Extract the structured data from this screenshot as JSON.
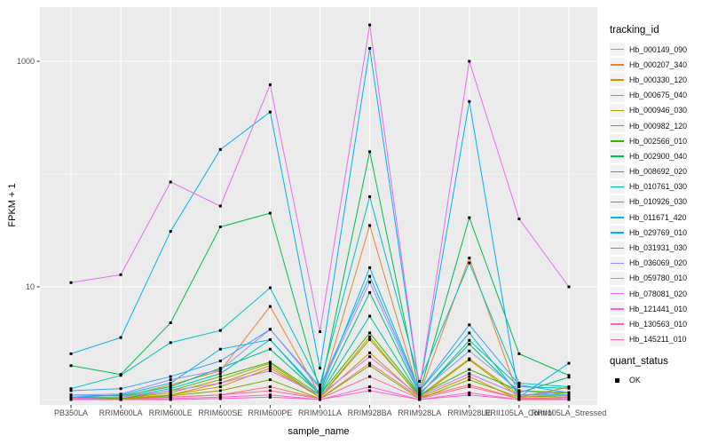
{
  "figure": {
    "y_axis_title": "FPKM + 1",
    "x_axis_title": "sample_name",
    "legend_color_title": "tracking_id",
    "legend_shape_title": "quant_status",
    "legend_shape_item": "OK",
    "colors": {
      "panel_background": "#EBEBEB",
      "grid_line": "#FFFFFF",
      "tick_mark": "#333333",
      "tick_label": "#4D4D4D",
      "point_marker": "#000000",
      "legend_key_background": "#F2F2F2"
    }
  },
  "chart_data": {
    "type": "line",
    "title": "",
    "xlabel": "sample_name",
    "ylabel": "FPKM + 1",
    "y_scale": "log10",
    "ylim": [
      1,
      3162
    ],
    "grid": true,
    "legend_position": "right",
    "point_marker": "black-square",
    "y_ticks_major": {
      "values": [
        10,
        1000
      ],
      "labels": [
        "10",
        "1000"
      ]
    },
    "y_ticks_minor_values": [
      1,
      100
    ],
    "x_categories": [
      "PB350LA",
      "RRIM600LA",
      "RRIM600LE",
      "RRIM600SE",
      "RRIM600PE",
      "RRIM901LA",
      "RRIM928BA",
      "RRIM928LA",
      "RRIM928LE",
      "RRII105LA_Control",
      "RRII105LA_Stressed"
    ],
    "series": [
      {
        "name": "Hb_000149_090",
        "color": "#F8766D",
        "values": [
          1.02,
          1.02,
          1.05,
          1.1,
          1.3,
          1.02,
          2.1,
          1.05,
          1.35,
          1.02,
          1.05
        ]
      },
      {
        "name": "Hb_000207_340",
        "color": "#EA8331",
        "values": [
          1.0,
          1.05,
          1.35,
          1.8,
          6.7,
          1.1,
          35.0,
          1.1,
          18.0,
          1.05,
          1.1
        ]
      },
      {
        "name": "Hb_000330_120",
        "color": "#D89000",
        "values": [
          1.0,
          1.0,
          1.1,
          1.3,
          1.9,
          1.05,
          2.6,
          1.05,
          1.6,
          1.0,
          1.05
        ]
      },
      {
        "name": "Hb_000675_040",
        "color": "#C09B00",
        "values": [
          1.0,
          1.02,
          1.1,
          1.4,
          2.0,
          1.05,
          3.6,
          1.05,
          2.25,
          1.05,
          1.29
        ]
      },
      {
        "name": "Hb_000946_030",
        "color": "#A3A500",
        "values": [
          1.05,
          1.02,
          1.15,
          1.5,
          2.1,
          1.05,
          3.4,
          1.08,
          2.3,
          1.1,
          1.15
        ]
      },
      {
        "name": "Hb_000982_120",
        "color": "#7CAE00",
        "values": [
          1.0,
          1.0,
          1.08,
          1.2,
          1.5,
          1.02,
          2.0,
          1.02,
          1.5,
          1.05,
          1.08
        ]
      },
      {
        "name": "Hb_002566_010",
        "color": "#39B600",
        "values": [
          1.02,
          1.02,
          1.2,
          1.6,
          2.15,
          1.1,
          3.9,
          1.1,
          1.85,
          1.2,
          1.15
        ]
      },
      {
        "name": "Hb_002900_040",
        "color": "#00BB4E",
        "values": [
          2.0,
          1.67,
          4.8,
          34.0,
          45.0,
          1.2,
          158,
          1.15,
          41.0,
          2.55,
          1.64
        ]
      },
      {
        "name": "Hb_008692_020",
        "color": "#00BF7D",
        "values": [
          1.1,
          1.08,
          1.3,
          1.9,
          2.8,
          1.12,
          8.9,
          1.12,
          3.1,
          1.15,
          1.58
        ]
      },
      {
        "name": "Hb_010761_030",
        "color": "#00C1A3",
        "values": [
          1.05,
          1.05,
          1.25,
          1.7,
          3.4,
          1.1,
          5.5,
          1.1,
          3.35,
          1.3,
          1.26
        ]
      },
      {
        "name": "Hb_010926_030",
        "color": "#00BFC4",
        "values": [
          1.25,
          1.64,
          3.2,
          4.1,
          9.8,
          1.35,
          63.0,
          1.45,
          16.3,
          1.4,
          1.3
        ]
      },
      {
        "name": "Hb_011671_420",
        "color": "#00BAE0",
        "values": [
          1.05,
          1.1,
          1.4,
          2.8,
          3.4,
          1.15,
          14.8,
          1.2,
          3.9,
          1.1,
          1.1
        ]
      },
      {
        "name": "Hb_029769_010",
        "color": "#00B0F6",
        "values": [
          2.55,
          3.55,
          31.0,
          165,
          355,
          1.9,
          1300,
          1.25,
          440,
          1.05,
          2.1
        ]
      },
      {
        "name": "Hb_031931_030",
        "color": "#35A2FF",
        "values": [
          1.2,
          1.25,
          1.6,
          2.2,
          4.2,
          1.3,
          12.4,
          1.2,
          4.6,
          1.35,
          1.15
        ]
      },
      {
        "name": "Hb_036069_020",
        "color": "#9590FF",
        "values": [
          1.1,
          1.12,
          1.5,
          1.83,
          4.2,
          1.25,
          11.0,
          1.15,
          2.7,
          1.2,
          1.1
        ]
      },
      {
        "name": "Hb_059780_010",
        "color": "#C77CFF",
        "values": [
          1.02,
          1.05,
          1.2,
          1.4,
          1.8,
          1.1,
          2.4,
          1.08,
          1.7,
          1.1,
          1.08
        ]
      },
      {
        "name": "Hb_078081_020",
        "color": "#E76BF3",
        "values": [
          10.9,
          12.8,
          85.0,
          52.0,
          620,
          4.0,
          2100,
          1.25,
          1000,
          40.0,
          10.0
        ]
      },
      {
        "name": "Hb_121441_010",
        "color": "#FA62DB",
        "values": [
          1.0,
          1.0,
          1.02,
          1.05,
          1.1,
          1.0,
          1.3,
          1.0,
          1.15,
          1.0,
          1.02
        ]
      },
      {
        "name": "Hb_130563_010",
        "color": "#FF61C3",
        "values": [
          1.0,
          1.0,
          1.0,
          1.02,
          1.05,
          1.0,
          1.2,
          1.0,
          1.1,
          1.0,
          1.0
        ]
      },
      {
        "name": "Hb_145211_010",
        "color": "#FF6A98",
        "values": [
          1.02,
          1.0,
          1.05,
          1.1,
          1.2,
          1.02,
          1.6,
          1.02,
          1.3,
          1.02,
          1.05
        ]
      }
    ]
  }
}
